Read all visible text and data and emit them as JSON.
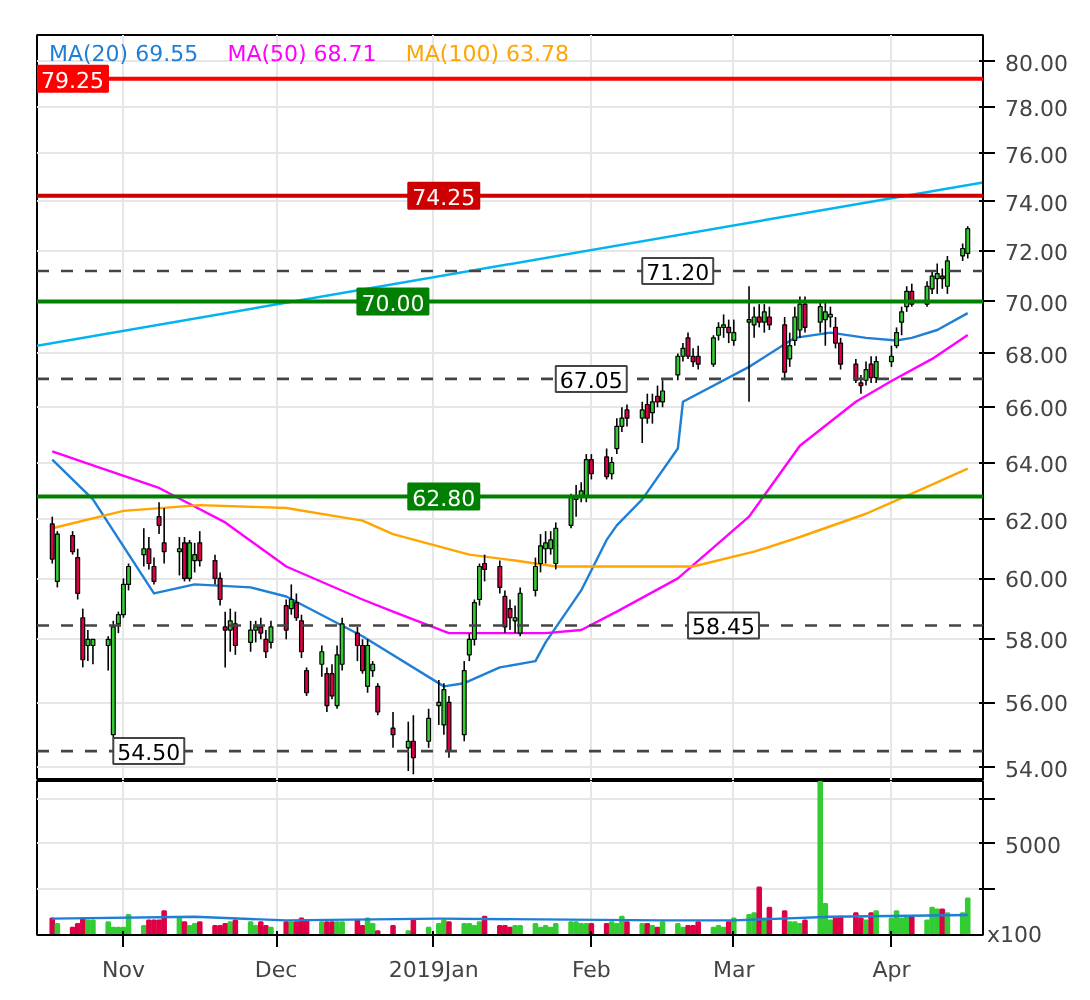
{
  "chart_data": [
    {
      "type": "candlestick",
      "x": [
        "2018-10-18",
        "2018-10-19",
        "2018-10-22",
        "2018-10-23",
        "2018-10-24",
        "2018-10-25",
        "2018-10-26",
        "2018-10-29",
        "2018-10-30",
        "2018-10-31",
        "2018-11-01",
        "2018-11-02",
        "2018-11-05",
        "2018-11-06",
        "2018-11-07",
        "2018-11-08",
        "2018-11-09",
        "2018-11-12",
        "2018-11-13",
        "2018-11-14",
        "2018-11-15",
        "2018-11-16",
        "2018-11-19",
        "2018-11-20",
        "2018-11-21",
        "2018-11-22",
        "2018-11-23",
        "2018-11-26",
        "2018-11-27",
        "2018-11-28",
        "2018-11-29",
        "2018-11-30",
        "2018-12-03",
        "2018-12-04",
        "2018-12-05",
        "2018-12-06",
        "2018-12-07",
        "2018-12-10",
        "2018-12-11",
        "2018-12-12",
        "2018-12-13",
        "2018-12-14",
        "2018-12-17",
        "2018-12-18",
        "2018-12-19",
        "2018-12-20",
        "2018-12-21",
        "2018-12-24",
        "2018-12-27",
        "2018-12-28",
        "2018-12-31",
        "2019-01-02",
        "2019-01-03",
        "2019-01-04",
        "2019-01-07",
        "2019-01-08",
        "2019-01-09",
        "2019-01-10",
        "2019-01-11",
        "2019-01-14",
        "2019-01-15",
        "2019-01-16",
        "2019-01-17",
        "2019-01-18",
        "2019-01-21",
        "2019-01-22",
        "2019-01-23",
        "2019-01-24",
        "2019-01-25",
        "2019-01-28",
        "2019-01-29",
        "2019-01-30",
        "2019-01-31",
        "2019-02-01",
        "2019-02-04",
        "2019-02-05",
        "2019-02-06",
        "2019-02-07",
        "2019-02-08",
        "2019-02-11",
        "2019-02-12",
        "2019-02-13",
        "2019-02-14",
        "2019-02-15",
        "2019-02-18",
        "2019-02-19",
        "2019-02-20",
        "2019-02-21",
        "2019-02-22",
        "2019-02-25",
        "2019-02-26",
        "2019-02-27",
        "2019-02-28",
        "2019-03-01",
        "2019-03-04",
        "2019-03-05",
        "2019-03-06",
        "2019-03-07",
        "2019-03-08",
        "2019-03-11",
        "2019-03-12",
        "2019-03-13",
        "2019-03-14",
        "2019-03-15",
        "2019-03-18",
        "2019-03-19",
        "2019-03-20",
        "2019-03-21",
        "2019-03-22",
        "2019-03-25",
        "2019-03-26",
        "2019-03-27",
        "2019-03-28",
        "2019-03-29",
        "2019-04-01",
        "2019-04-02",
        "2019-04-03",
        "2019-04-04",
        "2019-04-05",
        "2019-04-08",
        "2019-04-09",
        "2019-04-10",
        "2019-04-11",
        "2019-04-12",
        "2019-04-15",
        "2019-04-16"
      ],
      "ohlc": [
        [
          61.85,
          62.1,
          60.5,
          60.65
        ],
        [
          59.9,
          61.6,
          59.7,
          61.5
        ],
        [
          61.45,
          61.6,
          60.8,
          60.9
        ],
        [
          60.7,
          61.0,
          59.3,
          59.5
        ],
        [
          58.7,
          59.0,
          57.1,
          57.35
        ],
        [
          57.8,
          58.3,
          57.3,
          58.0
        ],
        [
          57.8,
          58.0,
          57.2,
          58.0
        ],
        [
          57.8,
          58.1,
          57.0,
          58.0
        ],
        [
          55.0,
          58.6,
          54.9,
          58.4
        ],
        [
          58.5,
          58.9,
          58.2,
          58.8
        ],
        [
          58.8,
          60.0,
          58.7,
          59.8
        ],
        [
          59.8,
          60.5,
          59.6,
          60.4
        ],
        [
          60.8,
          61.7,
          60.4,
          61.0
        ],
        [
          61.0,
          61.4,
          60.3,
          60.5
        ],
        [
          60.4,
          60.7,
          59.8,
          59.9
        ],
        [
          62.1,
          62.6,
          61.5,
          61.8
        ],
        [
          61.2,
          62.4,
          60.5,
          60.9
        ],
        [
          60.9,
          61.4,
          60.1,
          61.0
        ],
        [
          61.2,
          61.4,
          59.9,
          60.0
        ],
        [
          60.0,
          61.3,
          59.9,
          61.2
        ],
        [
          60.6,
          61.2,
          60.2,
          60.8
        ],
        [
          61.2,
          61.6,
          60.4,
          60.6
        ],
        [
          60.6,
          60.8,
          59.8,
          60.0
        ],
        [
          60.0,
          60.2,
          59.1,
          59.3
        ],
        [
          58.4,
          58.9,
          57.1,
          58.3
        ],
        [
          58.3,
          59.0,
          57.6,
          58.6
        ],
        [
          58.5,
          58.9,
          57.5,
          57.8
        ],
        [
          57.9,
          58.6,
          57.6,
          58.3
        ],
        [
          58.3,
          58.6,
          57.9,
          58.4
        ],
        [
          58.4,
          58.7,
          58.0,
          58.2
        ],
        [
          58.0,
          58.3,
          57.4,
          57.6
        ],
        [
          57.9,
          58.6,
          57.7,
          58.4
        ],
        [
          59.1,
          59.3,
          58.0,
          58.3
        ],
        [
          59.0,
          59.8,
          58.8,
          59.3
        ],
        [
          59.2,
          59.5,
          58.6,
          58.7
        ],
        [
          58.6,
          58.8,
          57.4,
          57.6
        ],
        [
          57.0,
          57.1,
          56.2,
          56.3
        ],
        [
          57.2,
          57.8,
          56.8,
          57.6
        ],
        [
          56.9,
          57.1,
          55.7,
          55.9
        ],
        [
          56.9,
          57.2,
          56.1,
          56.2
        ],
        [
          55.9,
          57.8,
          55.8,
          57.5
        ],
        [
          57.2,
          58.7,
          57.0,
          58.5
        ],
        [
          58.2,
          58.4,
          57.3,
          57.8
        ],
        [
          57.8,
          58.0,
          56.9,
          57.0
        ],
        [
          56.5,
          58.0,
          56.3,
          57.8
        ],
        [
          57.0,
          57.3,
          56.8,
          57.2
        ],
        [
          56.5,
          56.6,
          55.6,
          55.7
        ],
        [
          55.2,
          55.7,
          54.6,
          55.0
        ],
        [
          54.6,
          55.4,
          53.9,
          54.8
        ],
        [
          54.8,
          55.6,
          53.8,
          54.3
        ],
        [
          54.8,
          55.8,
          54.6,
          55.5
        ],
        [
          55.9,
          56.7,
          55.3,
          56.0
        ],
        [
          55.3,
          56.6,
          55.0,
          56.4
        ],
        [
          56.0,
          56.2,
          54.3,
          54.5
        ],
        [
          55.0,
          57.3,
          54.8,
          57.0
        ],
        [
          57.5,
          58.2,
          57.3,
          58.0
        ],
        [
          58.0,
          59.3,
          57.8,
          59.2
        ],
        [
          59.3,
          60.5,
          59.1,
          60.4
        ],
        [
          60.5,
          60.8,
          59.9,
          60.3
        ],
        [
          60.4,
          60.6,
          59.5,
          59.7
        ],
        [
          59.4,
          59.6,
          58.2,
          58.4
        ],
        [
          59.0,
          59.3,
          58.3,
          58.7
        ],
        [
          58.6,
          59.1,
          58.2,
          58.7
        ],
        [
          58.2,
          59.7,
          58.1,
          59.5
        ],
        [
          59.6,
          60.7,
          59.4,
          60.4
        ],
        [
          60.5,
          61.5,
          60.2,
          61.1
        ],
        [
          61.0,
          61.6,
          60.5,
          61.2
        ],
        [
          61.0,
          61.6,
          60.8,
          61.3
        ],
        [
          60.5,
          61.9,
          60.3,
          61.7
        ],
        [
          61.8,
          62.9,
          61.7,
          62.8
        ],
        [
          62.7,
          63.2,
          62.1,
          62.8
        ],
        [
          62.8,
          63.3,
          62.6,
          63.0
        ],
        [
          62.8,
          64.3,
          62.6,
          64.1
        ],
        [
          64.1,
          64.3,
          63.4,
          63.6
        ],
        [
          64.2,
          64.5,
          63.4,
          63.5
        ],
        [
          63.6,
          64.2,
          63.4,
          64.0
        ],
        [
          64.5,
          65.6,
          64.3,
          65.3
        ],
        [
          65.3,
          66.0,
          65.1,
          65.6
        ],
        [
          65.9,
          66.1,
          65.3,
          65.6
        ],
        [
          65.6,
          66.2,
          64.7,
          65.9
        ],
        [
          66.1,
          66.5,
          65.4,
          65.6
        ],
        [
          65.8,
          66.5,
          65.4,
          66.2
        ],
        [
          66.4,
          66.8,
          66.0,
          66.2
        ],
        [
          66.2,
          67.0,
          66.0,
          66.6
        ],
        [
          67.2,
          68.0,
          67.0,
          67.9
        ],
        [
          67.9,
          68.4,
          67.7,
          68.2
        ],
        [
          68.6,
          68.8,
          67.8,
          67.9
        ],
        [
          67.9,
          68.2,
          67.5,
          67.7
        ],
        [
          67.9,
          68.3,
          67.4,
          67.6
        ],
        [
          67.6,
          68.7,
          67.5,
          68.6
        ],
        [
          68.7,
          69.2,
          68.5,
          69.0
        ],
        [
          69.0,
          69.5,
          68.6,
          69.1
        ],
        [
          69.0,
          69.3,
          68.4,
          68.8
        ],
        [
          68.5,
          69.3,
          68.3,
          68.8
        ],
        [
          69.2,
          70.6,
          66.2,
          69.3
        ],
        [
          69.1,
          69.8,
          68.6,
          69.4
        ],
        [
          69.4,
          69.9,
          69.0,
          69.2
        ],
        [
          69.2,
          69.9,
          68.8,
          69.6
        ],
        [
          69.4,
          69.8,
          68.9,
          69.1
        ],
        [
          69.1,
          69.4,
          67.0,
          67.3
        ],
        [
          67.8,
          68.8,
          67.5,
          68.3
        ],
        [
          68.5,
          69.8,
          68.3,
          69.4
        ],
        [
          68.9,
          70.2,
          68.6,
          69.9
        ],
        [
          69.9,
          70.2,
          68.8,
          69.0
        ],
        [
          69.2,
          70.0,
          68.8,
          69.8
        ],
        [
          69.3,
          70.0,
          68.3,
          69.6
        ],
        [
          69.4,
          69.8,
          69.0,
          69.5
        ],
        [
          69.0,
          69.4,
          68.2,
          68.4
        ],
        [
          68.4,
          68.6,
          67.4,
          67.6
        ],
        [
          67.6,
          67.8,
          66.9,
          67.0
        ],
        [
          66.9,
          67.2,
          66.5,
          66.8
        ],
        [
          67.0,
          67.7,
          66.8,
          67.4
        ],
        [
          67.6,
          67.9,
          66.9,
          67.1
        ],
        [
          67.1,
          67.9,
          66.9,
          67.7
        ],
        [
          67.7,
          68.3,
          67.5,
          67.9
        ],
        [
          68.3,
          69.0,
          68.2,
          68.8
        ],
        [
          69.2,
          69.8,
          68.7,
          69.6
        ],
        [
          69.8,
          70.6,
          69.6,
          70.4
        ],
        [
          70.4,
          70.7,
          69.8,
          69.9
        ],
        [
          69.9,
          70.8,
          69.8,
          70.6
        ],
        [
          70.5,
          71.2,
          70.3,
          71.0
        ],
        [
          70.9,
          71.5,
          70.3,
          71.1
        ],
        [
          71.0,
          71.3,
          70.5,
          70.9
        ],
        [
          70.6,
          71.8,
          70.3,
          71.6
        ],
        [
          71.8,
          72.3,
          71.6,
          72.1
        ],
        [
          71.9,
          73.0,
          71.7,
          72.9
        ]
      ],
      "series": [
        {
          "name": "MA(20) 69.55",
          "type": "line",
          "color": "#1e7fd6",
          "x": [
            "2018-10-18",
            "2018-10-26",
            "2018-11-07",
            "2018-11-15",
            "2018-11-26",
            "2018-12-03",
            "2018-12-18",
            "2019-01-03",
            "2019-01-07",
            "2019-01-14",
            "2019-01-21",
            "2019-01-23",
            "2019-01-30",
            "2019-02-04",
            "2019-02-06",
            "2019-02-11",
            "2019-02-18",
            "2019-02-19",
            "2019-03-04",
            "2019-03-13",
            "2019-03-20",
            "2019-03-27",
            "2019-04-02",
            "2019-04-05",
            "2019-04-10",
            "2019-04-16"
          ],
          "values": [
            64.1,
            62.7,
            59.5,
            59.8,
            59.7,
            59.4,
            58.1,
            56.5,
            56.6,
            57.1,
            57.3,
            57.9,
            59.6,
            61.3,
            61.8,
            62.7,
            64.5,
            66.2,
            67.5,
            68.6,
            68.8,
            68.6,
            68.5,
            68.6,
            68.9,
            69.55
          ]
        },
        {
          "name": "MA(50) 68.71",
          "type": "line",
          "color": "#ff00ff",
          "x": [
            "2018-10-18",
            "2018-10-26",
            "2018-11-08",
            "2018-11-21",
            "2018-12-03",
            "2018-12-18",
            "2018-12-24",
            "2019-01-04",
            "2019-01-23",
            "2019-01-30",
            "2019-02-06",
            "2019-02-18",
            "2019-03-04",
            "2019-03-14",
            "2019-03-25",
            "2019-04-01",
            "2019-04-09",
            "2019-04-16"
          ],
          "values": [
            64.4,
            63.9,
            63.1,
            61.9,
            60.4,
            59.3,
            58.9,
            58.2,
            58.2,
            58.3,
            58.9,
            60.0,
            62.1,
            64.6,
            66.2,
            66.97,
            67.8,
            68.71
          ]
        },
        {
          "name": "MA(100) 63.78",
          "type": "line",
          "color": "#ffa500",
          "x": [
            "2018-10-18",
            "2018-11-01",
            "2018-11-16",
            "2018-12-03",
            "2018-12-18",
            "2018-12-24",
            "2019-01-08",
            "2019-01-17",
            "2019-01-25",
            "2019-02-04",
            "2019-02-21",
            "2019-03-05",
            "2019-03-14",
            "2019-03-27",
            "2019-04-05",
            "2019-04-16"
          ],
          "values": [
            61.7,
            62.3,
            62.5,
            62.4,
            61.96,
            61.5,
            60.8,
            60.6,
            60.4,
            60.4,
            60.4,
            60.9,
            61.4,
            62.2,
            62.9,
            63.78
          ]
        },
        {
          "type": "line",
          "color": "#00b4f0",
          "x": [
            "2018-10-15",
            "2019-04-19"
          ],
          "values": [
            68.3,
            74.8
          ]
        }
      ],
      "ref_lines": [
        {
          "axis": "y",
          "value": 79.25,
          "color": "#ff0000",
          "line_style": "solid"
        },
        {
          "axis": "y",
          "value": 74.25,
          "color": "#cc0000",
          "line_style": "solid"
        },
        {
          "axis": "y",
          "value": 71.2,
          "color": "#444444",
          "line_style": "dashed"
        },
        {
          "axis": "y",
          "value": 70.0,
          "color": "#008000",
          "line_style": "solid"
        },
        {
          "axis": "y",
          "value": 67.05,
          "color": "#444444",
          "line_style": "dashed"
        },
        {
          "axis": "y",
          "value": 62.8,
          "color": "#008000",
          "line_style": "solid"
        },
        {
          "axis": "y",
          "value": 58.45,
          "color": "#444444",
          "line_style": "dashed"
        },
        {
          "axis": "y",
          "value": 54.5,
          "color": "#444444",
          "line_style": "dashed"
        }
      ],
      "annotations": [
        {
          "text": "79.25",
          "x": "2018-10-15",
          "y": 79.25
        },
        {
          "text": "74.25",
          "x": "2018-12-27",
          "y": 74.25
        },
        {
          "text": "71.20",
          "x": "2019-02-11",
          "y": 71.2
        },
        {
          "text": "70.00",
          "x": "2018-12-17",
          "y": 70.0
        },
        {
          "text": "67.05",
          "x": "2019-01-25",
          "y": 67.05
        },
        {
          "text": "62.80",
          "x": "2018-12-27",
          "y": 62.8
        },
        {
          "text": "58.45",
          "x": "2019-02-20",
          "y": 58.45
        },
        {
          "text": "54.50",
          "x": "2018-10-30",
          "y": 54.5
        }
      ],
      "xlim": [
        "2018-10-15",
        "2019-04-19"
      ],
      "xticks": [
        {
          "value": "2018-11-01",
          "label": null
        },
        {
          "value": "2018-12-01",
          "label": null
        },
        {
          "value": "2019-01-01",
          "label": null
        },
        {
          "value": "2019-02-01",
          "label": null
        },
        {
          "value": "2019-03-01",
          "label": null
        },
        {
          "value": "2019-04-01",
          "label": null
        }
      ],
      "ylim": [
        53.6,
        81.2
      ],
      "yticks": [
        {
          "value": 54,
          "label": "54.00"
        },
        {
          "value": 56,
          "label": "56.00"
        },
        {
          "value": 58,
          "label": "58.00"
        },
        {
          "value": 60,
          "label": "60.00"
        },
        {
          "value": 62,
          "label": "62.00"
        },
        {
          "value": 64,
          "label": "64.00"
        },
        {
          "value": 66,
          "label": "66.00"
        },
        {
          "value": 68,
          "label": "68.00"
        },
        {
          "value": 70,
          "label": "70.00"
        },
        {
          "value": 72,
          "label": "72.00"
        },
        {
          "value": 74,
          "label": "74.00"
        },
        {
          "value": 76,
          "label": "76.00"
        },
        {
          "value": 78,
          "label": "78.00"
        },
        {
          "value": 80,
          "label": "80.00"
        }
      ],
      "log": true,
      "grid": true,
      "legend": "top left",
      "tick_labels": "y"
    },
    {
      "type": "bar",
      "x": [
        "2018-10-18",
        "2018-10-19",
        "2018-10-22",
        "2018-10-23",
        "2018-10-24",
        "2018-10-25",
        "2018-10-26",
        "2018-10-29",
        "2018-10-30",
        "2018-10-31",
        "2018-11-01",
        "2018-11-02",
        "2018-11-05",
        "2018-11-06",
        "2018-11-07",
        "2018-11-08",
        "2018-11-09",
        "2018-11-12",
        "2018-11-13",
        "2018-11-14",
        "2018-11-15",
        "2018-11-16",
        "2018-11-19",
        "2018-11-20",
        "2018-11-21",
        "2018-11-22",
        "2018-11-23",
        "2018-11-26",
        "2018-11-27",
        "2018-11-28",
        "2018-11-29",
        "2018-11-30",
        "2018-12-03",
        "2018-12-04",
        "2018-12-05",
        "2018-12-06",
        "2018-12-07",
        "2018-12-10",
        "2018-12-11",
        "2018-12-12",
        "2018-12-13",
        "2018-12-14",
        "2018-12-17",
        "2018-12-18",
        "2018-12-19",
        "2018-12-20",
        "2018-12-21",
        "2018-12-24",
        "2018-12-27",
        "2018-12-28",
        "2018-12-31",
        "2019-01-02",
        "2019-01-03",
        "2019-01-04",
        "2019-01-07",
        "2019-01-08",
        "2019-01-09",
        "2019-01-10",
        "2019-01-11",
        "2019-01-14",
        "2019-01-15",
        "2019-01-16",
        "2019-01-17",
        "2019-01-18",
        "2019-01-21",
        "2019-01-22",
        "2019-01-23",
        "2019-01-24",
        "2019-01-25",
        "2019-01-28",
        "2019-01-29",
        "2019-01-30",
        "2019-01-31",
        "2019-02-01",
        "2019-02-04",
        "2019-02-05",
        "2019-02-06",
        "2019-02-07",
        "2019-02-08",
        "2019-02-11",
        "2019-02-12",
        "2019-02-13",
        "2019-02-14",
        "2019-02-15",
        "2019-02-18",
        "2019-02-19",
        "2019-02-20",
        "2019-02-21",
        "2019-02-22",
        "2019-02-25",
        "2019-02-26",
        "2019-02-27",
        "2019-02-28",
        "2019-03-01",
        "2019-03-04",
        "2019-03-05",
        "2019-03-06",
        "2019-03-07",
        "2019-03-08",
        "2019-03-11",
        "2019-03-12",
        "2019-03-13",
        "2019-03-14",
        "2019-03-15",
        "2019-03-18",
        "2019-03-19",
        "2019-03-20",
        "2019-03-21",
        "2019-03-22",
        "2019-03-25",
        "2019-03-26",
        "2019-03-27",
        "2019-03-28",
        "2019-03-29",
        "2019-04-01",
        "2019-04-02",
        "2019-04-03",
        "2019-04-04",
        "2019-04-05",
        "2019-04-08",
        "2019-04-09",
        "2019-04-10",
        "2019-04-11",
        "2019-04-12",
        "2019-04-15",
        "2019-04-16"
      ],
      "series": [
        {
          "type": "bar",
          "values": [
            900,
            600,
            400,
            600,
            900,
            800,
            800,
            700,
            400,
            400,
            400,
            1100,
            500,
            800,
            800,
            800,
            1300,
            900,
            700,
            500,
            600,
            700,
            500,
            500,
            600,
            700,
            800,
            700,
            500,
            700,
            500,
            400,
            700,
            700,
            700,
            900,
            800,
            700,
            700,
            700,
            700,
            700,
            800,
            500,
            900,
            600,
            200,
            500,
            200,
            800,
            400,
            600,
            800,
            700,
            600,
            600,
            500,
            700,
            1000,
            500,
            500,
            400,
            500,
            500,
            600,
            400,
            500,
            400,
            600,
            700,
            700,
            600,
            600,
            600,
            600,
            700,
            600,
            1000,
            700,
            600,
            600,
            500,
            400,
            700,
            600,
            400,
            500,
            500,
            700,
            400,
            500,
            400,
            700,
            900,
            1100,
            1200,
            2600,
            900,
            1500,
            1300,
            700,
            700,
            600,
            800,
            8400,
            1700,
            800,
            900,
            1000,
            1200,
            900,
            800,
            1200,
            1300,
            900,
            1300,
            900,
            1000,
            1000,
            800,
            1500,
            1400,
            1400,
            1200,
            1200,
            2000
          ],
          "colors": [
            "#dd0044",
            "#33cc33",
            "#dd0044",
            "#dd0044",
            "#dd0044",
            "#33cc33",
            "#33cc33",
            "#33cc33",
            "#33cc33",
            "#33cc33",
            "#33cc33",
            "#33cc33",
            "#33cc33",
            "#dd0044",
            "#dd0044",
            "#dd0044",
            "#dd0044",
            "#33cc33",
            "#dd0044",
            "#33cc33",
            "#33cc33",
            "#dd0044",
            "#dd0044",
            "#dd0044",
            "#dd0044",
            "#33cc33",
            "#dd0044",
            "#33cc33",
            "#33cc33",
            "#dd0044",
            "#dd0044",
            "#33cc33",
            "#dd0044",
            "#33cc33",
            "#dd0044",
            "#dd0044",
            "#dd0044",
            "#33cc33",
            "#dd0044",
            "#dd0044",
            "#33cc33",
            "#33cc33",
            "#dd0044",
            "#dd0044",
            "#33cc33",
            "#33cc33",
            "#dd0044",
            "#dd0044",
            "#33cc33",
            "#dd0044",
            "#33cc33",
            "#33cc33",
            "#33cc33",
            "#dd0044",
            "#33cc33",
            "#33cc33",
            "#33cc33",
            "#33cc33",
            "#dd0044",
            "#dd0044",
            "#dd0044",
            "#dd0044",
            "#33cc33",
            "#33cc33",
            "#33cc33",
            "#33cc33",
            "#33cc33",
            "#33cc33",
            "#33cc33",
            "#33cc33",
            "#33cc33",
            "#33cc33",
            "#33cc33",
            "#dd0044",
            "#dd0044",
            "#33cc33",
            "#33cc33",
            "#33cc33",
            "#dd0044",
            "#33cc33",
            "#dd0044",
            "#33cc33",
            "#dd0044",
            "#33cc33",
            "#33cc33",
            "#33cc33",
            "#dd0044",
            "#dd0044",
            "#dd0044",
            "#33cc33",
            "#33cc33",
            "#33cc33",
            "#dd0044",
            "#33cc33",
            "#33cc33",
            "#33cc33",
            "#dd0044",
            "#33cc33",
            "#dd0044",
            "#dd0044",
            "#33cc33",
            "#33cc33",
            "#33cc33",
            "#dd0044",
            "#33cc33",
            "#33cc33",
            "#33cc33",
            "#dd0044",
            "#dd0044",
            "#dd0044",
            "#dd0044",
            "#33cc33",
            "#dd0044",
            "#33cc33",
            "#33cc33",
            "#33cc33",
            "#33cc33",
            "#33cc33",
            "#dd0044",
            "#33cc33",
            "#33cc33",
            "#33cc33",
            "#dd0044",
            "#33cc33",
            "#33cc33",
            "#33cc33"
          ]
        },
        {
          "type": "line",
          "color": "#1e7fd6",
          "x": [
            "2018-10-18",
            "2018-11-15",
            "2018-12-03",
            "2019-01-02",
            "2019-02-15",
            "2019-03-01",
            "2019-03-20",
            "2019-04-16"
          ],
          "values": [
            900,
            1000,
            800,
            900,
            800,
            800,
            1000,
            1100
          ]
        }
      ],
      "annotations": [
        "x100"
      ],
      "xlim": [
        "2018-10-15",
        "2019-04-19"
      ],
      "xticks": [
        {
          "value": "2018-11-01",
          "label": "Nov"
        },
        {
          "value": "2018-12-01",
          "label": "Dec"
        },
        {
          "value": "2019-01-01",
          "label": "2019Jan"
        },
        {
          "value": "2019-02-01",
          "label": "Feb"
        },
        {
          "value": "2019-03-01",
          "label": "Mar"
        },
        {
          "value": "2019-04-01",
          "label": "Apr"
        }
      ],
      "ylim": [
        0,
        8450
      ],
      "yticks": [
        {
          "value": 2500,
          "label": null
        },
        5000,
        {
          "value": 7500,
          "label": null
        }
      ],
      "grid": true
    }
  ]
}
